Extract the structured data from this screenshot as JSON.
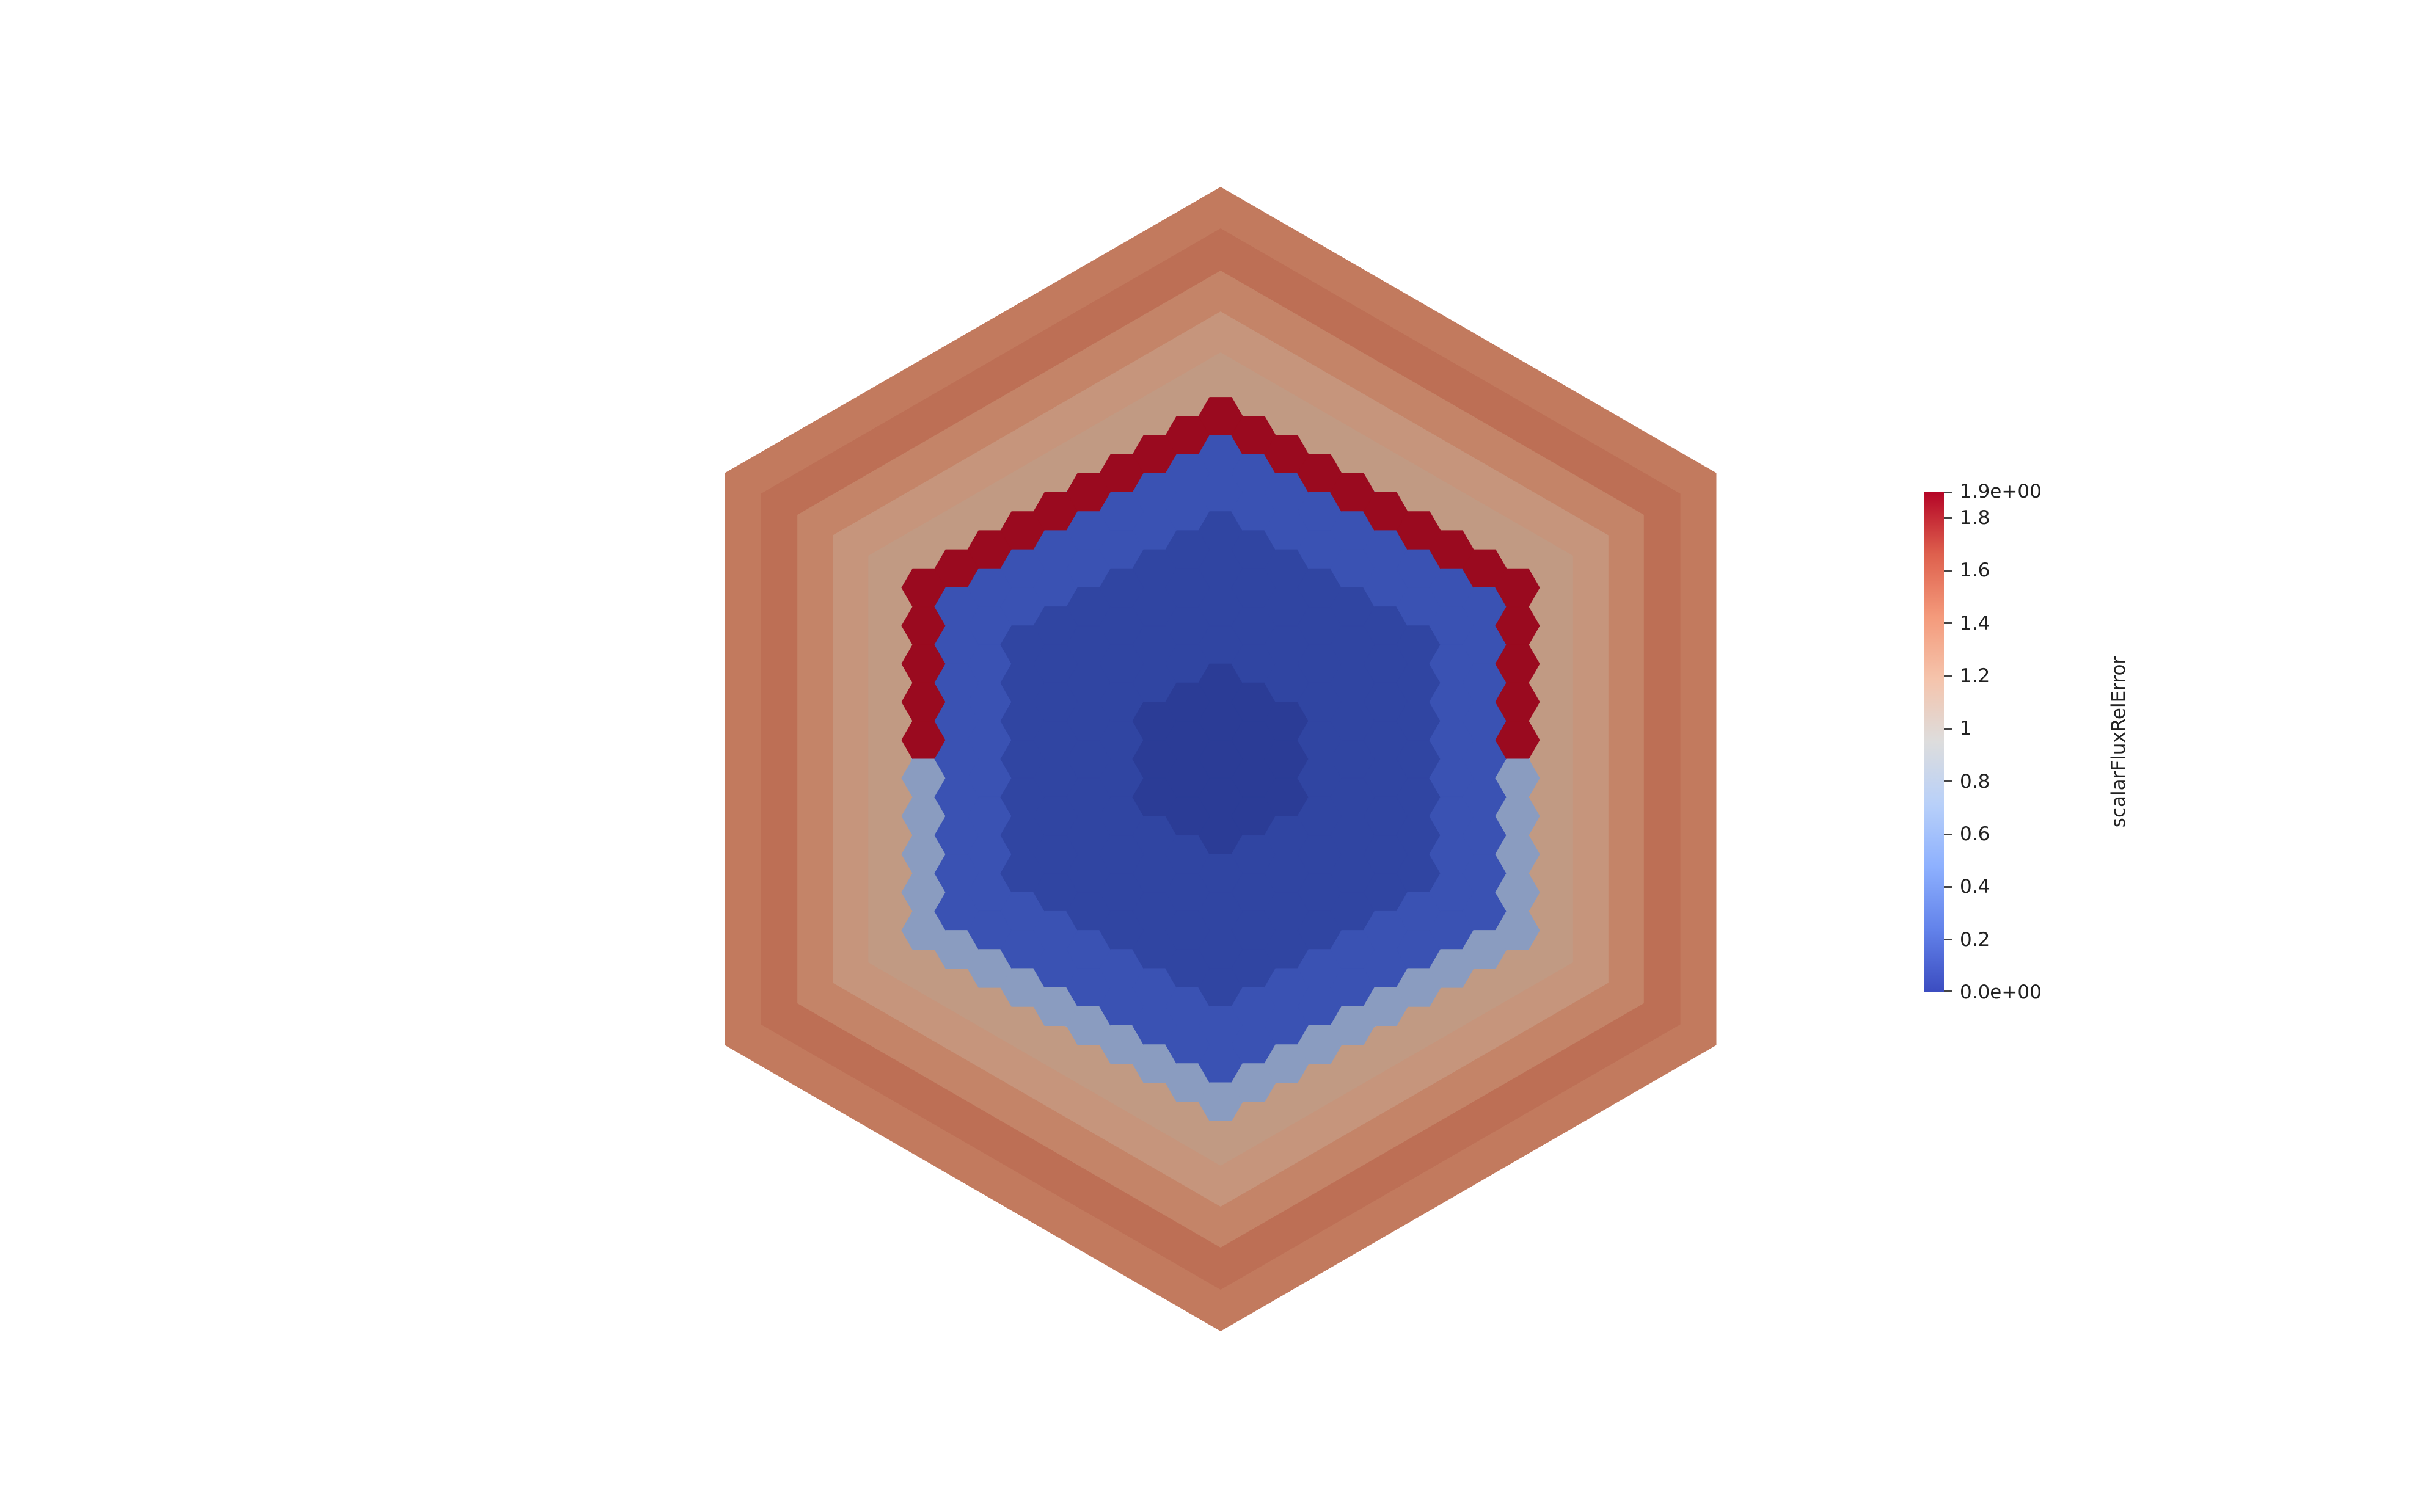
{
  "render_view": {
    "background": "#ffffff",
    "field_name": "scalarFluxRelError"
  },
  "colormap": {
    "name": "Cool to Warm",
    "stops": [
      "#3b4cc0",
      "#6282ea",
      "#8db0fe",
      "#b8d0f9",
      "#dddddd",
      "#f5c4ac",
      "#f49a7b",
      "#de604d",
      "#b40426"
    ],
    "range": [
      0.0,
      1.9
    ]
  },
  "scalar_bar": {
    "title": "scalarFluxRelError",
    "max_label": "1.9e+00",
    "min_label": "0.0e+00",
    "ticks": [
      {
        "value": 1.8,
        "label": "1.8"
      },
      {
        "value": 1.6,
        "label": "1.6"
      },
      {
        "value": 1.4,
        "label": "1.4"
      },
      {
        "value": 1.2,
        "label": "1.2"
      },
      {
        "value": 1.0,
        "label": "1"
      },
      {
        "value": 0.8,
        "label": "0.8"
      },
      {
        "value": 0.6,
        "label": "0.6"
      },
      {
        "value": 0.4,
        "label": "0.4"
      },
      {
        "value": 0.2,
        "label": "0.2"
      }
    ]
  },
  "outer_rings": {
    "values": [
      1.55,
      1.63,
      1.52,
      1.4,
      1.27
    ],
    "colors": [
      "#c27a5e",
      "#bd6f55",
      "#c48468",
      "#c6957c",
      "#c19a83"
    ]
  },
  "fuel_region": {
    "circle_color": "#8fa2c4",
    "red_band_color": "#9a0a1f",
    "pale_band_color": "#8a9cc0",
    "blue_shade_outer": "#3a52b3",
    "blue_shade_mid": "#3045a2",
    "blue_shade_inner": "#2b3c96"
  }
}
